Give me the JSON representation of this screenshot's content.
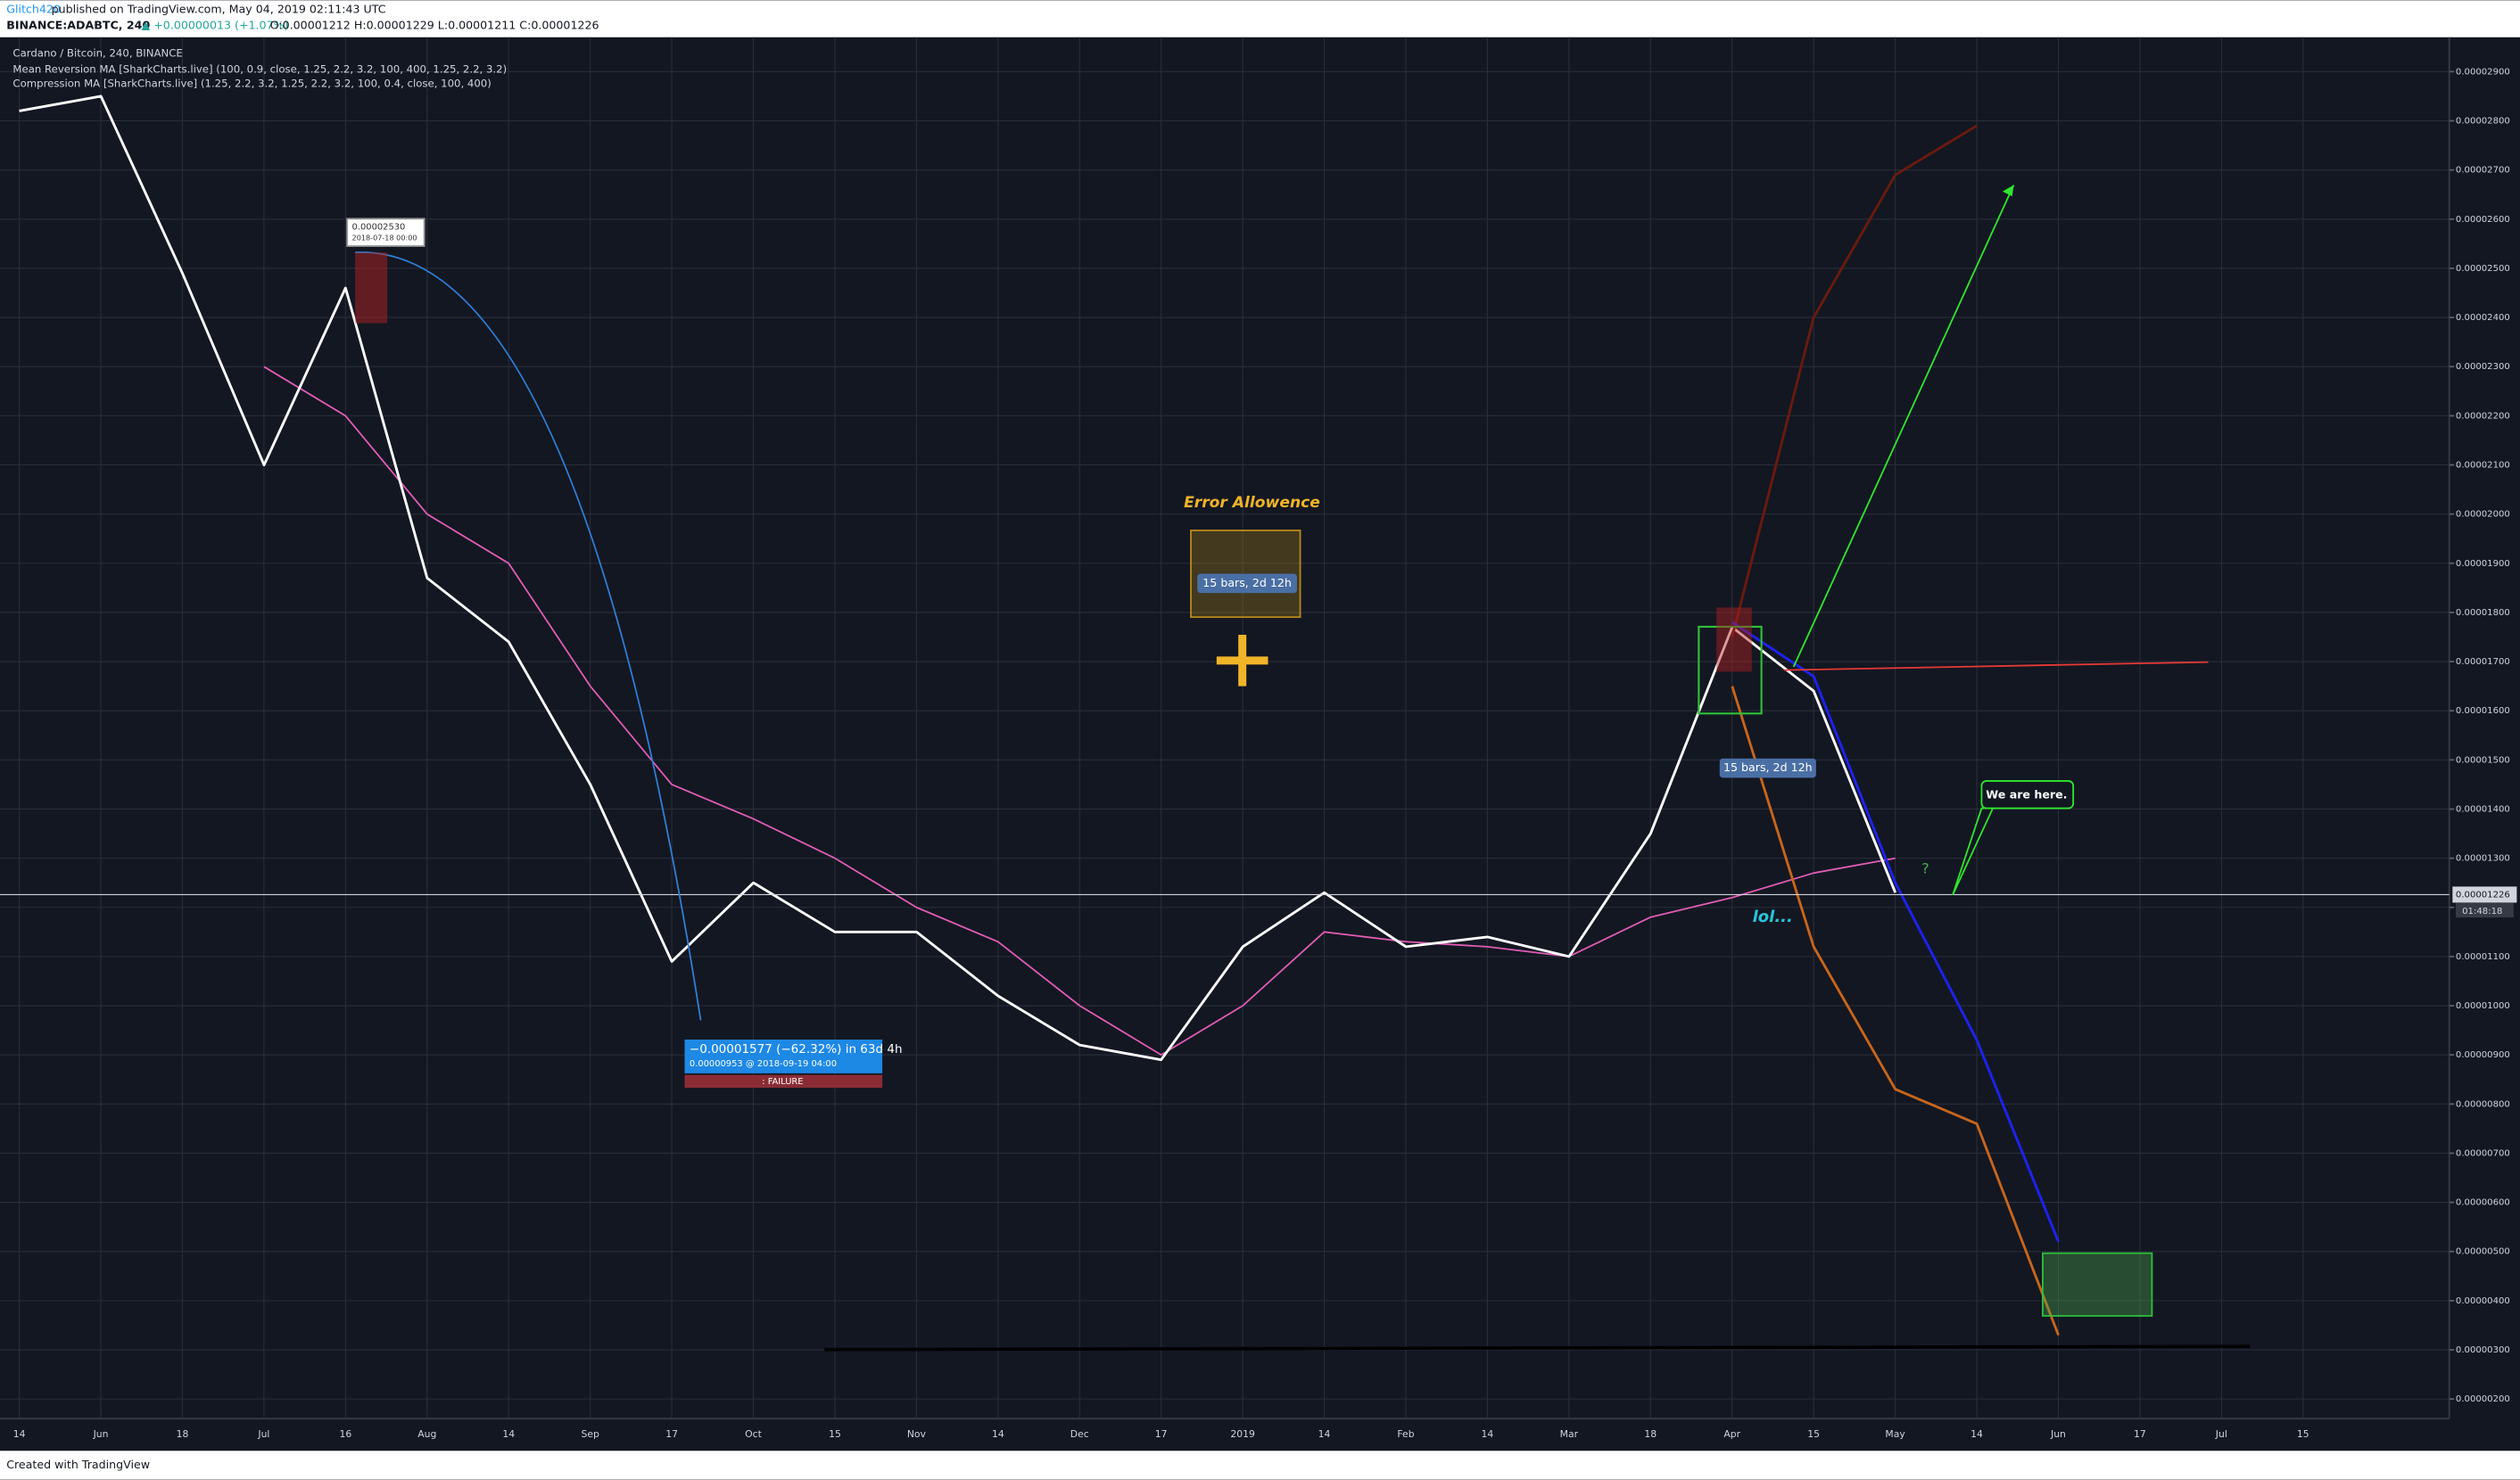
{
  "chart_data": {
    "type": "line",
    "header": {
      "author": "Glitch420",
      "published": " published on TradingView.com, May 04, 2019 02:11:43 UTC",
      "symbol": "BINANCE:ADABTC, 240",
      "change": "▲ +0.00000013 (+1.07%)",
      "ohlc": "O:0.00001212 H:0.00001229 L:0.00001211 C:0.00001226"
    },
    "legend": [
      "Cardano / Bitcoin, 240, BINANCE",
      "Mean Reversion MA [SharkCharts.live] (100, 0.9, close, 1.25, 2.2, 3.2, 100, 400, 1.25, 2.2, 3.2)",
      "Compression MA [SharkCharts.live] (1.25, 2.2, 3.2, 1.25, 2.2, 3.2, 100, 0.4, close, 100, 400)"
    ],
    "annotations": [
      "Error Allowence",
      "15 bars, 2d 12h",
      "15 bars, 2d 12h",
      "We are here.",
      "lol...",
      "?",
      "−0.00001577 (−62.32%) in 63d 4h",
      "0.00000953  @ 2018-09-19  04:00",
      ": FAILURE",
      "0.00002530",
      "2018-07-18 00:00"
    ],
    "footer": "Created with TradingView",
    "categories": [
      "14",
      "Jun",
      "18",
      "Jul",
      "16",
      "Aug",
      "14",
      "Sep",
      "17",
      "Oct",
      "15",
      "Nov",
      "14",
      "Dec",
      "17",
      "2019",
      "14",
      "Feb",
      "14",
      "Mar",
      "18",
      "Apr",
      "15",
      "May",
      "14",
      "Jun",
      "17",
      "Jul",
      "15"
    ],
    "series": [
      {
        "color": "#e05cb5",
        "values": [
          null,
          null,
          null,
          2.3e-05,
          2.2e-05,
          2e-05,
          1.9e-05,
          1.65e-05,
          1.45e-05,
          1.38e-05,
          1.3e-05,
          1.2e-05,
          1.13e-05,
          1e-05,
          9e-06,
          1e-05,
          1.15e-05,
          1.13e-05,
          1.12e-05,
          1.1e-05,
          1.18e-05,
          1.22e-05,
          1.27e-05,
          1.3e-05,
          null,
          null,
          null,
          null,
          null
        ]
      },
      {
        "color": "#ffffff",
        "values": [
          2.82e-05,
          2.85e-05,
          2.49e-05,
          2.1e-05,
          2.46e-05,
          1.87e-05,
          1.74e-05,
          1.45e-05,
          1.09e-05,
          1.25e-05,
          1.15e-05,
          1.15e-05,
          1.02e-05,
          9.2e-06,
          8.9e-06,
          1.12e-05,
          1.23e-05,
          1.12e-05,
          1.14e-05,
          1.1e-05,
          1.35e-05,
          1.77e-05,
          1.64e-05,
          1.23e-05,
          null,
          null,
          null,
          null,
          null
        ]
      },
      {
        "color": "#6b1a0e",
        "values": [
          null,
          null,
          null,
          null,
          null,
          null,
          null,
          null,
          null,
          null,
          null,
          null,
          null,
          null,
          null,
          null,
          null,
          null,
          null,
          null,
          null,
          1.75e-05,
          2.4e-05,
          2.69e-05,
          2.79e-05,
          null,
          null,
          null,
          null
        ]
      },
      {
        "color": "#c8651b",
        "values": [
          null,
          null,
          null,
          null,
          null,
          null,
          null,
          null,
          null,
          null,
          null,
          null,
          null,
          null,
          null,
          null,
          null,
          null,
          null,
          null,
          null,
          1.65e-05,
          1.12e-05,
          8.3e-06,
          7.6e-06,
          3.3e-06,
          null,
          null,
          null
        ]
      },
      {
        "color": "#1e22f0",
        "values": [
          null,
          null,
          null,
          null,
          null,
          null,
          null,
          null,
          null,
          null,
          null,
          null,
          null,
          null,
          null,
          null,
          null,
          null,
          null,
          null,
          null,
          1.78e-05,
          1.67e-05,
          1.25e-05,
          9.3e-06,
          5.2e-06,
          null,
          null,
          null
        ]
      }
    ],
    "ylim": [
      1.6e-06,
      2.97e-05
    ],
    "yticks": [
      {
        "value": 2.9e-05,
        "label": "0.00002900"
      },
      {
        "value": 2.8e-05,
        "label": "0.00002800"
      },
      {
        "value": 2.7e-05,
        "label": "0.00002700"
      },
      {
        "value": 2.6e-05,
        "label": "0.00002600"
      },
      {
        "value": 2.5e-05,
        "label": "0.00002500"
      },
      {
        "value": 2.4e-05,
        "label": "0.00002400"
      },
      {
        "value": 2.3e-05,
        "label": "0.00002300"
      },
      {
        "value": 2.2e-05,
        "label": "0.00002200"
      },
      {
        "value": 2.1e-05,
        "label": "0.00002100"
      },
      {
        "value": 2e-05,
        "label": "0.00002000"
      },
      {
        "value": 1.9e-05,
        "label": "0.00001900"
      },
      {
        "value": 1.8e-05,
        "label": "0.00001800"
      },
      {
        "value": 1.7e-05,
        "label": "0.00001700"
      },
      {
        "value": 1.6e-05,
        "label": "0.00001600"
      },
      {
        "value": 1.5e-05,
        "label": "0.00001500"
      },
      {
        "value": 1.4e-05,
        "label": "0.00001400"
      },
      {
        "value": 1.3e-05,
        "label": "0.00001300"
      },
      {
        "value": 1.2e-05,
        "label": "0.00001200"
      },
      {
        "value": 1.1e-05,
        "label": "0.00001100"
      },
      {
        "value": 1e-05,
        "label": "0.00001000"
      },
      {
        "value": 9e-06,
        "label": "0.00000900"
      },
      {
        "value": 8e-06,
        "label": "0.00000800"
      },
      {
        "value": 7e-06,
        "label": "0.00000700"
      },
      {
        "value": 6e-06,
        "label": "0.00000600"
      },
      {
        "value": 5e-06,
        "label": "0.00000500"
      },
      {
        "value": 4e-06,
        "label": "0.00000400"
      },
      {
        "value": 3e-06,
        "label": "0.00000300"
      },
      {
        "value": 2e-06,
        "label": "0.00000200"
      }
    ],
    "last_price": {
      "value": 1.226e-05,
      "label": "0.00001226"
    },
    "countdown": "01:48:18",
    "grid": true
  }
}
